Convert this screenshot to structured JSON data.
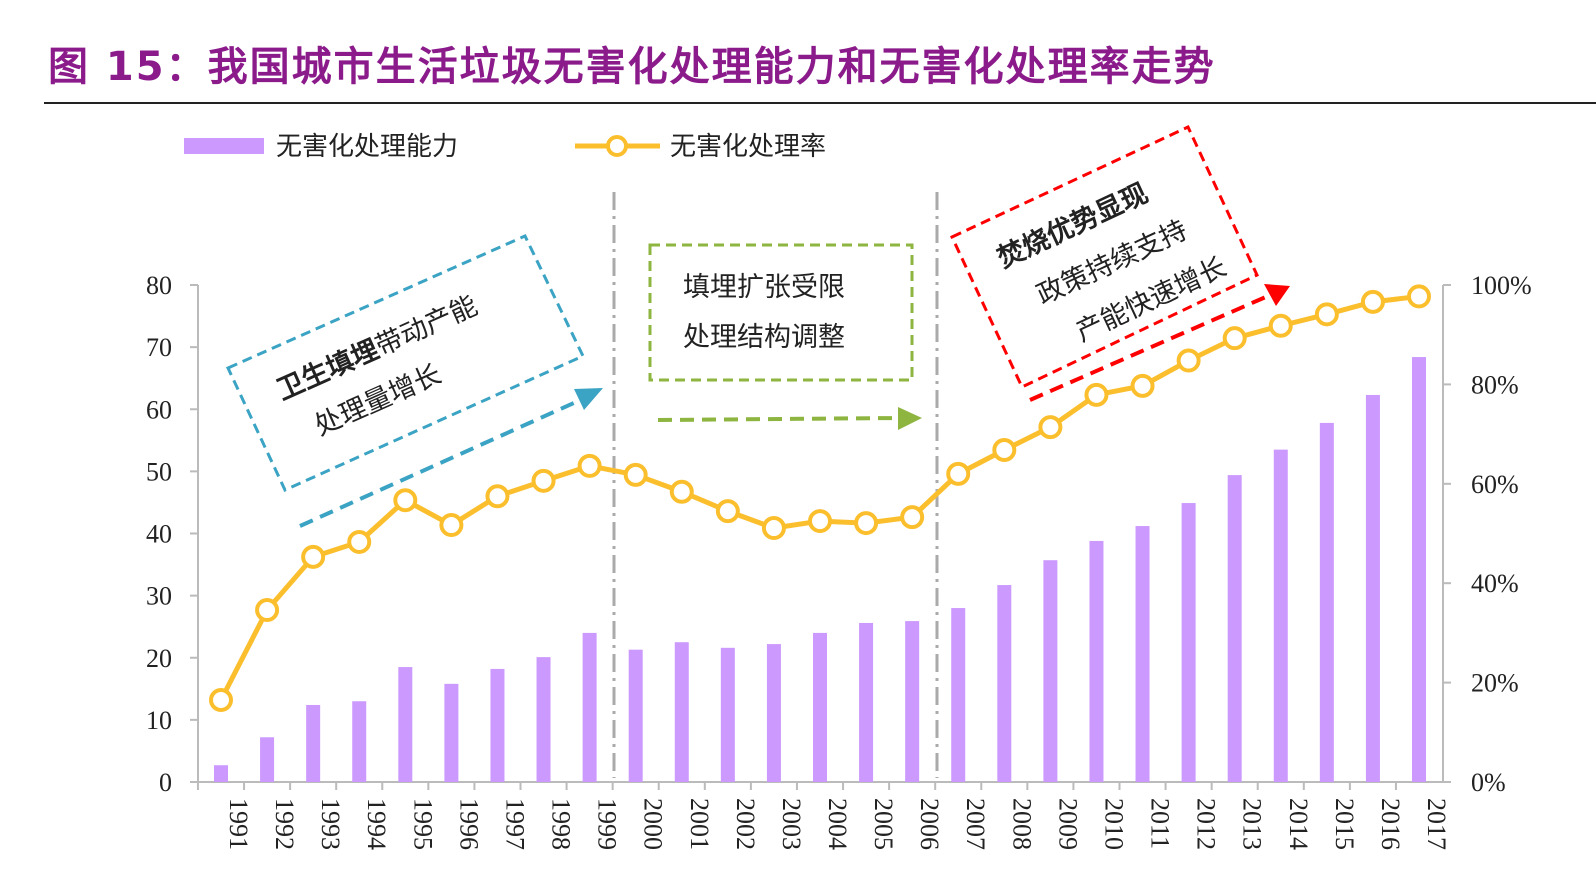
{
  "title": "图 15：我国城市生活垃圾无害化处理能力和无害化处理率走势",
  "chart_data": {
    "type": "bar+line",
    "categories": [
      "1991",
      "1992",
      "1993",
      "1994",
      "1995",
      "1996",
      "1997",
      "1998",
      "1999",
      "2000",
      "2001",
      "2002",
      "2003",
      "2004",
      "2005",
      "2006",
      "2007",
      "2008",
      "2009",
      "2010",
      "2011",
      "2012",
      "2013",
      "2014",
      "2015",
      "2016",
      "2017"
    ],
    "series": [
      {
        "name": "无害化处理能力",
        "type": "bar",
        "axis": "left",
        "color": "#CC99FF",
        "values": [
          2.7,
          7.2,
          12.4,
          13.0,
          18.5,
          15.8,
          18.2,
          20.1,
          24.0,
          21.3,
          22.5,
          21.6,
          22.2,
          24.0,
          25.6,
          25.9,
          28.0,
          31.7,
          35.7,
          38.8,
          41.2,
          44.9,
          49.4,
          53.5,
          57.8,
          62.3,
          68.4
        ]
      },
      {
        "name": "无害化处理率",
        "type": "line",
        "axis": "right",
        "color": "#FBBF2E",
        "unit": "%",
        "values": [
          16.5,
          34.6,
          45.3,
          48.3,
          56.7,
          51.7,
          57.5,
          60.6,
          63.6,
          61.8,
          58.4,
          54.5,
          51.1,
          52.5,
          52.1,
          53.3,
          62.0,
          66.8,
          71.4,
          77.9,
          79.7,
          84.8,
          89.3,
          91.8,
          94.1,
          96.6,
          97.7
        ]
      }
    ],
    "left_axis": {
      "ylim": [
        0,
        80
      ],
      "ticks": [
        "0",
        "10",
        "20",
        "30",
        "40",
        "50",
        "60",
        "70",
        "80"
      ]
    },
    "right_axis": {
      "ylim": [
        0,
        100
      ],
      "ticks": [
        "0%",
        "20%",
        "40%",
        "60%",
        "80%",
        "100%"
      ]
    },
    "legend_position": "top-left",
    "grid": false,
    "phase_dividers": [
      "1999/2000",
      "2006/2007"
    ],
    "annotations": [
      {
        "color": "#3BA3C3",
        "bold": "卫生填埋",
        "line1_rest": "带动产能",
        "line2": "处理量增长"
      },
      {
        "color": "#8DB53F",
        "line1": "填埋扩张受限",
        "line2": "处理结构调整"
      },
      {
        "color": "#FF0000",
        "bold": "焚烧优势显现",
        "line2": "政策持续支持",
        "line3": "产能快速增长"
      }
    ]
  }
}
